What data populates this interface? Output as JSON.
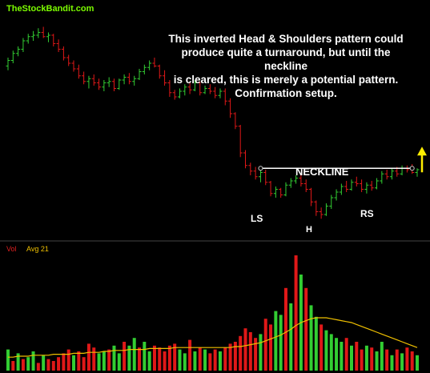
{
  "watermark": "TheStockBandit.com",
  "annotation": {
    "line1": "This inverted Head & Shoulders pattern could",
    "line2": "produce quite a turnaround, but until the neckline",
    "line3": "is cleared, this is merely a potential pattern.",
    "line4": "Confirmation setup."
  },
  "labels": {
    "neckline": "NECKLINE",
    "left_shoulder": "LS",
    "head": "H",
    "right_shoulder": "RS"
  },
  "chart_data": [
    {
      "type": "candlestick",
      "note": "price panel, daily bars, no axis labels printed; values in relative price units",
      "bars": [
        [
          84.2,
          84.8,
          83.9,
          84.6
        ],
        [
          84.6,
          85.3,
          84.4,
          85.1
        ],
        [
          85.1,
          85.6,
          84.9,
          85.4
        ],
        [
          85.4,
          86.2,
          85.2,
          86.0
        ],
        [
          86.0,
          86.5,
          85.8,
          86.3
        ],
        [
          86.3,
          86.7,
          86.0,
          86.4
        ],
        [
          86.4,
          86.9,
          86.2,
          86.6
        ],
        [
          86.6,
          87.0,
          86.2,
          86.3
        ],
        [
          86.3,
          86.6,
          85.9,
          86.4
        ],
        [
          86.4,
          86.5,
          85.6,
          85.8
        ],
        [
          85.8,
          86.1,
          85.2,
          85.4
        ],
        [
          85.4,
          85.6,
          84.6,
          84.8
        ],
        [
          84.8,
          85.0,
          84.2,
          84.4
        ],
        [
          84.4,
          84.6,
          83.8,
          84.0
        ],
        [
          84.0,
          84.3,
          83.3,
          83.5
        ],
        [
          83.5,
          83.8,
          82.9,
          83.1
        ],
        [
          83.1,
          83.5,
          82.6,
          83.3
        ],
        [
          83.3,
          83.6,
          82.8,
          83.0
        ],
        [
          83.0,
          83.3,
          82.5,
          82.7
        ],
        [
          82.7,
          83.2,
          82.4,
          83.0
        ],
        [
          83.0,
          83.4,
          82.7,
          83.1
        ],
        [
          83.1,
          83.3,
          82.4,
          82.6
        ],
        [
          82.6,
          83.3,
          82.5,
          83.2
        ],
        [
          83.2,
          83.6,
          82.9,
          83.4
        ],
        [
          83.4,
          83.7,
          82.9,
          83.1
        ],
        [
          83.1,
          83.5,
          82.8,
          83.3
        ],
        [
          83.3,
          84.0,
          83.2,
          83.8
        ],
        [
          83.8,
          84.3,
          83.6,
          84.1
        ],
        [
          84.1,
          84.6,
          83.9,
          84.4
        ],
        [
          84.4,
          84.8,
          84.1,
          84.2
        ],
        [
          84.2,
          84.3,
          83.3,
          83.5
        ],
        [
          83.5,
          83.9,
          82.8,
          83.0
        ],
        [
          83.0,
          83.2,
          82.0,
          82.3
        ],
        [
          82.3,
          82.5,
          81.8,
          82.0
        ],
        [
          82.0,
          82.6,
          81.9,
          82.4
        ],
        [
          82.4,
          82.9,
          82.1,
          82.7
        ],
        [
          82.7,
          83.0,
          82.2,
          82.5
        ],
        [
          82.5,
          83.2,
          82.4,
          83.0
        ],
        [
          83.0,
          83.1,
          82.1,
          82.3
        ],
        [
          82.3,
          82.8,
          82.2,
          82.6
        ],
        [
          82.6,
          82.9,
          82.2,
          82.4
        ],
        [
          82.4,
          82.7,
          81.9,
          82.1
        ],
        [
          82.1,
          82.6,
          81.9,
          82.4
        ],
        [
          82.4,
          82.6,
          81.4,
          81.7
        ],
        [
          81.7,
          81.9,
          80.5,
          80.8
        ],
        [
          80.8,
          80.9,
          79.7,
          79.9
        ],
        [
          79.9,
          80.0,
          77.7,
          78.0
        ],
        [
          78.0,
          78.2,
          76.9,
          77.1
        ],
        [
          77.1,
          77.3,
          76.4,
          76.7
        ],
        [
          76.7,
          77.0,
          76.1,
          76.3
        ],
        [
          76.3,
          76.8,
          75.9,
          76.6
        ],
        [
          76.6,
          76.8,
          75.7,
          75.9
        ],
        [
          75.9,
          76.0,
          74.9,
          75.1
        ],
        [
          75.1,
          75.6,
          74.8,
          75.4
        ],
        [
          75.4,
          75.5,
          74.8,
          75.0
        ],
        [
          75.0,
          75.9,
          74.9,
          75.7
        ],
        [
          75.7,
          76.2,
          75.5,
          76.0
        ],
        [
          76.0,
          76.4,
          75.8,
          76.2
        ],
        [
          76.2,
          76.5,
          75.6,
          75.8
        ],
        [
          75.8,
          76.1,
          75.2,
          75.4
        ],
        [
          75.4,
          75.5,
          74.2,
          74.5
        ],
        [
          74.5,
          74.6,
          73.5,
          73.8
        ],
        [
          73.8,
          74.1,
          73.3,
          73.6
        ],
        [
          73.6,
          74.4,
          73.5,
          74.2
        ],
        [
          74.2,
          75.0,
          74.0,
          74.8
        ],
        [
          74.8,
          75.4,
          74.6,
          75.2
        ],
        [
          75.2,
          75.8,
          75.0,
          75.6
        ],
        [
          75.6,
          76.0,
          75.2,
          75.4
        ],
        [
          75.4,
          76.1,
          75.3,
          75.9
        ],
        [
          75.9,
          76.3,
          75.6,
          75.8
        ],
        [
          75.8,
          76.1,
          75.2,
          75.4
        ],
        [
          75.4,
          75.9,
          75.1,
          75.7
        ],
        [
          75.7,
          76.0,
          75.3,
          75.5
        ],
        [
          75.5,
          76.2,
          75.4,
          76.0
        ],
        [
          76.0,
          76.7,
          75.8,
          76.5
        ],
        [
          76.5,
          76.8,
          76.1,
          76.3
        ],
        [
          76.3,
          76.9,
          76.1,
          76.7
        ],
        [
          76.7,
          77.0,
          76.3,
          76.5
        ],
        [
          76.5,
          77.1,
          76.4,
          76.9
        ],
        [
          76.9,
          77.1,
          76.6,
          76.8
        ],
        [
          76.8,
          77.2,
          76.5,
          76.6
        ],
        [
          76.6,
          76.9,
          76.3,
          76.8
        ]
      ],
      "neckline": 76.9,
      "arrow": "up",
      "annotations": [
        "NECKLINE",
        "LS",
        "H",
        "RS"
      ]
    },
    {
      "type": "bar",
      "note": "volume panel with 21-period average line",
      "legend": [
        "Vol",
        "Avg 21"
      ],
      "series": [
        {
          "name": "Vol",
          "values": [
            22,
            10,
            18,
            12,
            14,
            20,
            8,
            16,
            12,
            10,
            14,
            18,
            22,
            16,
            20,
            14,
            28,
            24,
            18,
            20,
            22,
            26,
            18,
            30,
            26,
            34,
            24,
            30,
            20,
            26,
            24,
            20,
            26,
            28,
            22,
            18,
            32,
            20,
            24,
            22,
            18,
            22,
            20,
            24,
            28,
            30,
            36,
            44,
            40,
            34,
            38,
            54,
            48,
            62,
            58,
            86,
            70,
            120,
            100,
            86,
            68,
            56,
            48,
            42,
            38,
            34,
            30,
            34,
            26,
            30,
            22,
            26,
            24,
            20,
            30,
            22,
            16,
            22,
            18,
            24,
            20,
            16
          ],
          "up": [
            1,
            0,
            1,
            0,
            1,
            1,
            0,
            1,
            0,
            0,
            0,
            0,
            0,
            1,
            0,
            0,
            0,
            0,
            1,
            1,
            0,
            1,
            1,
            0,
            1,
            1,
            0,
            1,
            1,
            0,
            0,
            0,
            0,
            0,
            1,
            1,
            0,
            1,
            0,
            1,
            0,
            0,
            1,
            0,
            0,
            0,
            0,
            0,
            0,
            0,
            1,
            0,
            0,
            1,
            1,
            0,
            1,
            0,
            1,
            0,
            1,
            1,
            0,
            1,
            1,
            1,
            1,
            0,
            1,
            0,
            0,
            1,
            0,
            1,
            1,
            0,
            1,
            0,
            1,
            0,
            0,
            1
          ]
        },
        {
          "name": "Avg 21",
          "values": [
            14,
            14,
            15,
            15,
            15,
            16,
            16,
            16,
            16,
            17,
            17,
            17,
            17,
            18,
            18,
            18,
            19,
            19,
            19,
            20,
            20,
            21,
            21,
            21,
            22,
            22,
            22,
            22,
            23,
            23,
            23,
            23,
            23,
            24,
            24,
            24,
            24,
            24,
            24,
            24,
            24,
            24,
            24,
            24,
            24,
            25,
            25,
            26,
            27,
            28,
            29,
            31,
            33,
            35,
            37,
            40,
            43,
            47,
            50,
            52,
            54,
            55,
            55,
            55,
            54,
            53,
            52,
            51,
            50,
            48,
            46,
            44,
            42,
            40,
            38,
            36,
            34,
            32,
            30,
            28,
            26,
            24
          ]
        }
      ]
    }
  ]
}
